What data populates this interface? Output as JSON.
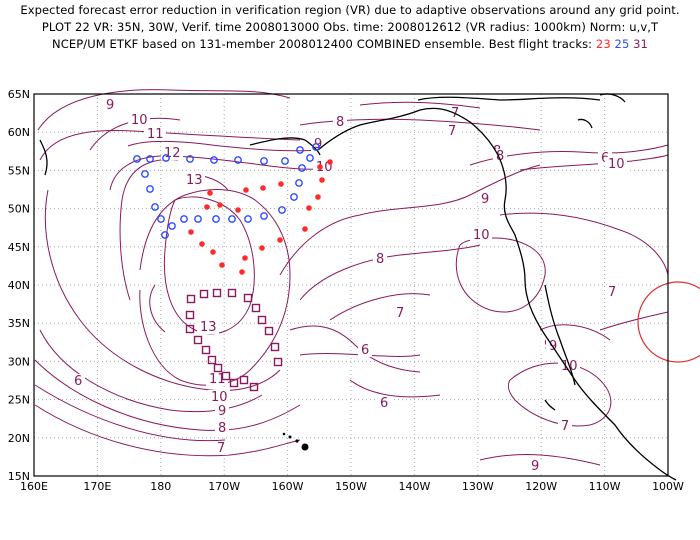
{
  "title": {
    "line1": "Expected forecast error reduction in verification region (VR) due to adaptive observations around any grid point.",
    "line2": "PLOT 22 VR: 35N, 30W, Verif. time 2008013000 Obs. time: 2008012612 (VR radius: 1000km) Norm: u,v,T",
    "line3_prefix": "NCEP/UM ETKF based on 131-member 2008012400 COMBINED ensemble.  Best flight tracks: ",
    "track_red": "23",
    "track_blue": "25",
    "track_purple": "31"
  },
  "colors": {
    "contour": "#8a1a5e",
    "coast": "#000000",
    "grid": "#aaaaaa",
    "track_red": "#ff2a2a",
    "track_blue": "#2a4bff",
    "track_purple": "#8a1a5e",
    "vr_circle": "#e03030"
  },
  "axes": {
    "lat_labels": [
      "65N",
      "60N",
      "55N",
      "50N",
      "45N",
      "40N",
      "35N",
      "30N",
      "25N",
      "20N",
      "15N"
    ],
    "lon_labels": [
      "160E",
      "170E",
      "180",
      "170W",
      "160W",
      "150W",
      "140W",
      "130W",
      "120W",
      "110W",
      "100W"
    ]
  },
  "contour_labels": [
    "9",
    "10",
    "11",
    "12",
    "13",
    "9",
    "10",
    "8",
    "7",
    "6",
    "9",
    "8",
    "7",
    "6",
    "10",
    "10",
    "9",
    "8",
    "7",
    "6",
    "13",
    "11",
    "10",
    "9",
    "8",
    "7",
    "7",
    "6",
    "9",
    "10",
    "8",
    "7",
    "9"
  ]
}
